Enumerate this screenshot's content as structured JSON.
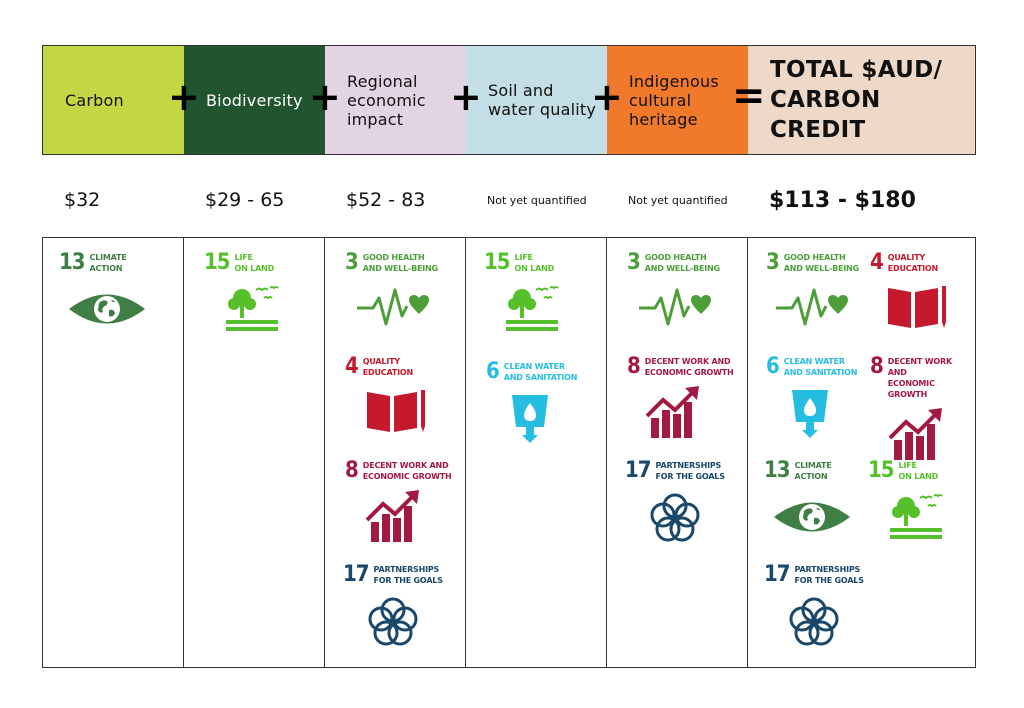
{
  "header": {
    "cells": [
      {
        "label": "Carbon",
        "bg": "#c2d743"
      },
      {
        "label": "Biodiversity",
        "bg": "#22542f"
      },
      {
        "label": "Regional economic impact",
        "bg": "#e2d4e3"
      },
      {
        "label": "Soil and water quality",
        "bg": "#c4dee6"
      },
      {
        "label": "Indigenous cultural heritage",
        "bg": "#f1792c"
      },
      {
        "label": "TOTAL $AUD/ CARBON CREDIT",
        "bg": "#eed8c7"
      }
    ],
    "plus": "+",
    "equals": "="
  },
  "values": {
    "carbon": "$32",
    "biodiversity": "$29 - 65",
    "regional": "$52 - 83",
    "soil": "Not yet quantified",
    "indigenous": "Not yet quantified",
    "total": "$113 - $180"
  },
  "sdgs": {
    "climate": {
      "num": "13",
      "l1": "CLIMATE",
      "l2": "ACTION",
      "color": "#3f7e44"
    },
    "land": {
      "num": "15",
      "l1": "LIFE",
      "l2": "ON LAND",
      "color": "#56c02b"
    },
    "health": {
      "num": "3",
      "l1": "GOOD HEALTH",
      "l2": "AND WELL-BEING",
      "color": "#4c9f38"
    },
    "education": {
      "num": "4",
      "l1": "QUALITY",
      "l2": "EDUCATION",
      "color": "#c5192d"
    },
    "work": {
      "num": "8",
      "l1": "DECENT WORK AND",
      "l2": "ECONOMIC GROWTH",
      "color": "#a21942"
    },
    "partner": {
      "num": "17",
      "l1": "PARTNERSHIPS",
      "l2": "FOR THE GOALS",
      "color": "#19486a"
    },
    "water": {
      "num": "6",
      "l1": "CLEAN WATER",
      "l2": "AND SANITATION",
      "color": "#26bde2"
    }
  }
}
